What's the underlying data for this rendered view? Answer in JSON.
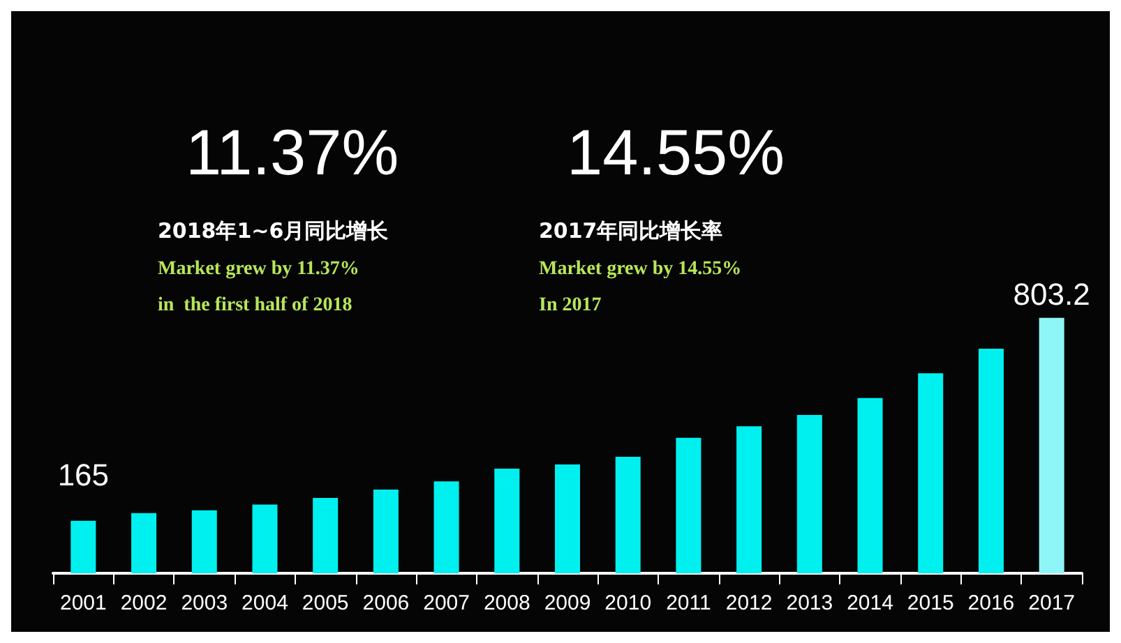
{
  "chart_data": {
    "type": "bar",
    "categories": [
      "2001",
      "2002",
      "2003",
      "2004",
      "2005",
      "2006",
      "2007",
      "2008",
      "2009",
      "2010",
      "2011",
      "2012",
      "2013",
      "2014",
      "2015",
      "2016",
      "2017"
    ],
    "values": [
      165,
      189,
      198,
      216,
      237,
      263,
      289,
      329,
      342,
      366,
      426,
      462,
      498,
      551,
      629,
      706,
      803.2
    ],
    "colors": [
      "#00f0f0",
      "#00f0f0",
      "#00f0f0",
      "#00f0f0",
      "#00f0f0",
      "#00f0f0",
      "#00f0f0",
      "#00f0f0",
      "#00f0f0",
      "#00f0f0",
      "#00f0f0",
      "#00f0f0",
      "#00f0f0",
      "#00f0f0",
      "#00f0f0",
      "#00f0f0",
      "#8ff6f8"
    ],
    "value_labels": [
      "165",
      null,
      null,
      null,
      null,
      null,
      null,
      null,
      null,
      null,
      null,
      null,
      null,
      null,
      null,
      null,
      "803.2"
    ],
    "annotations": [
      "11.37%",
      "2018年1~6月同比增长",
      "Market grew by 11.37%",
      "in  the first half of 2018",
      "14.55%",
      "2017年同比增长率",
      "Market grew by 14.55%",
      "In 2017"
    ],
    "grid": false
  }
}
